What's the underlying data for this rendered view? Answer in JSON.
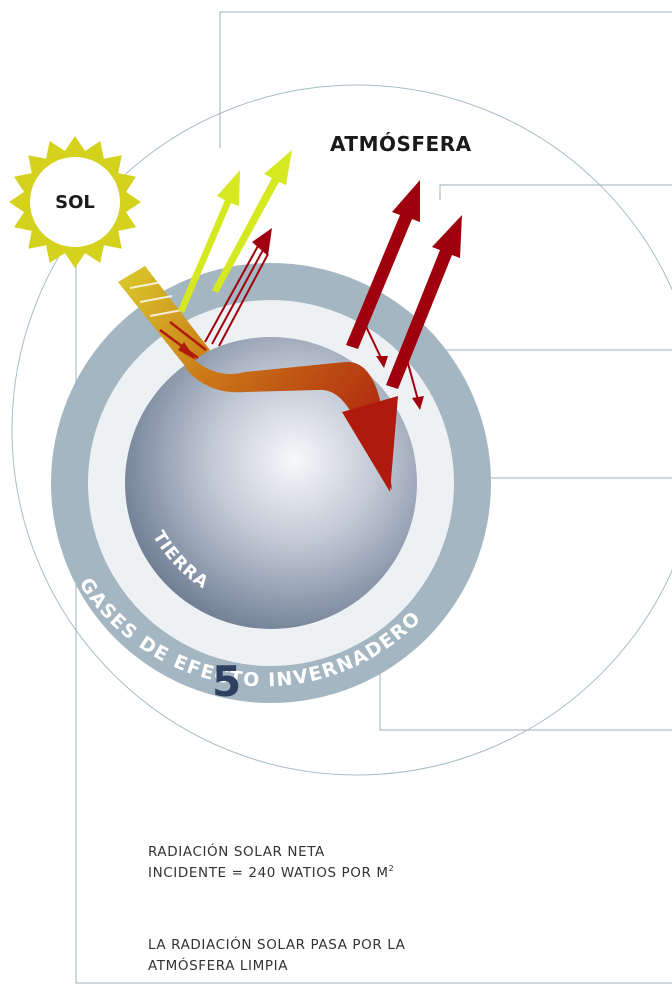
{
  "labels": {
    "atmosphere": "ATMÓSFERA",
    "sun": "SOL",
    "earth": "TIERRA",
    "greenhouse_gases": "GASES DE EFECTO INVERNADERO",
    "step_number": "5"
  },
  "captions": {
    "net_radiation": "RADIACIÓN SOLAR NETA INCIDENTE = 240 WATIOS POR M",
    "net_radiation_sup": "2",
    "passes_atmosphere": "LA RADIACIÓN SOLAR PASA POR LA ATMÓSFERA LIMPIA"
  },
  "colors": {
    "outer_ring": "#a3b6c1",
    "inner_ring": "#eef1f4",
    "earth_center": "#f7f8fa",
    "earth_edge": "#6f7e94",
    "sun_rays": "#d4d21c",
    "sun_core": "#ffffff",
    "reflected_arrow": "#d6e81f",
    "infrared_arrow": "#a0000d",
    "incoming_gradient_start": "#d7c22a",
    "incoming_gradient_end": "#b01a0c",
    "leader_lines": "#9fb0b8",
    "step_number": "#2e4160"
  }
}
